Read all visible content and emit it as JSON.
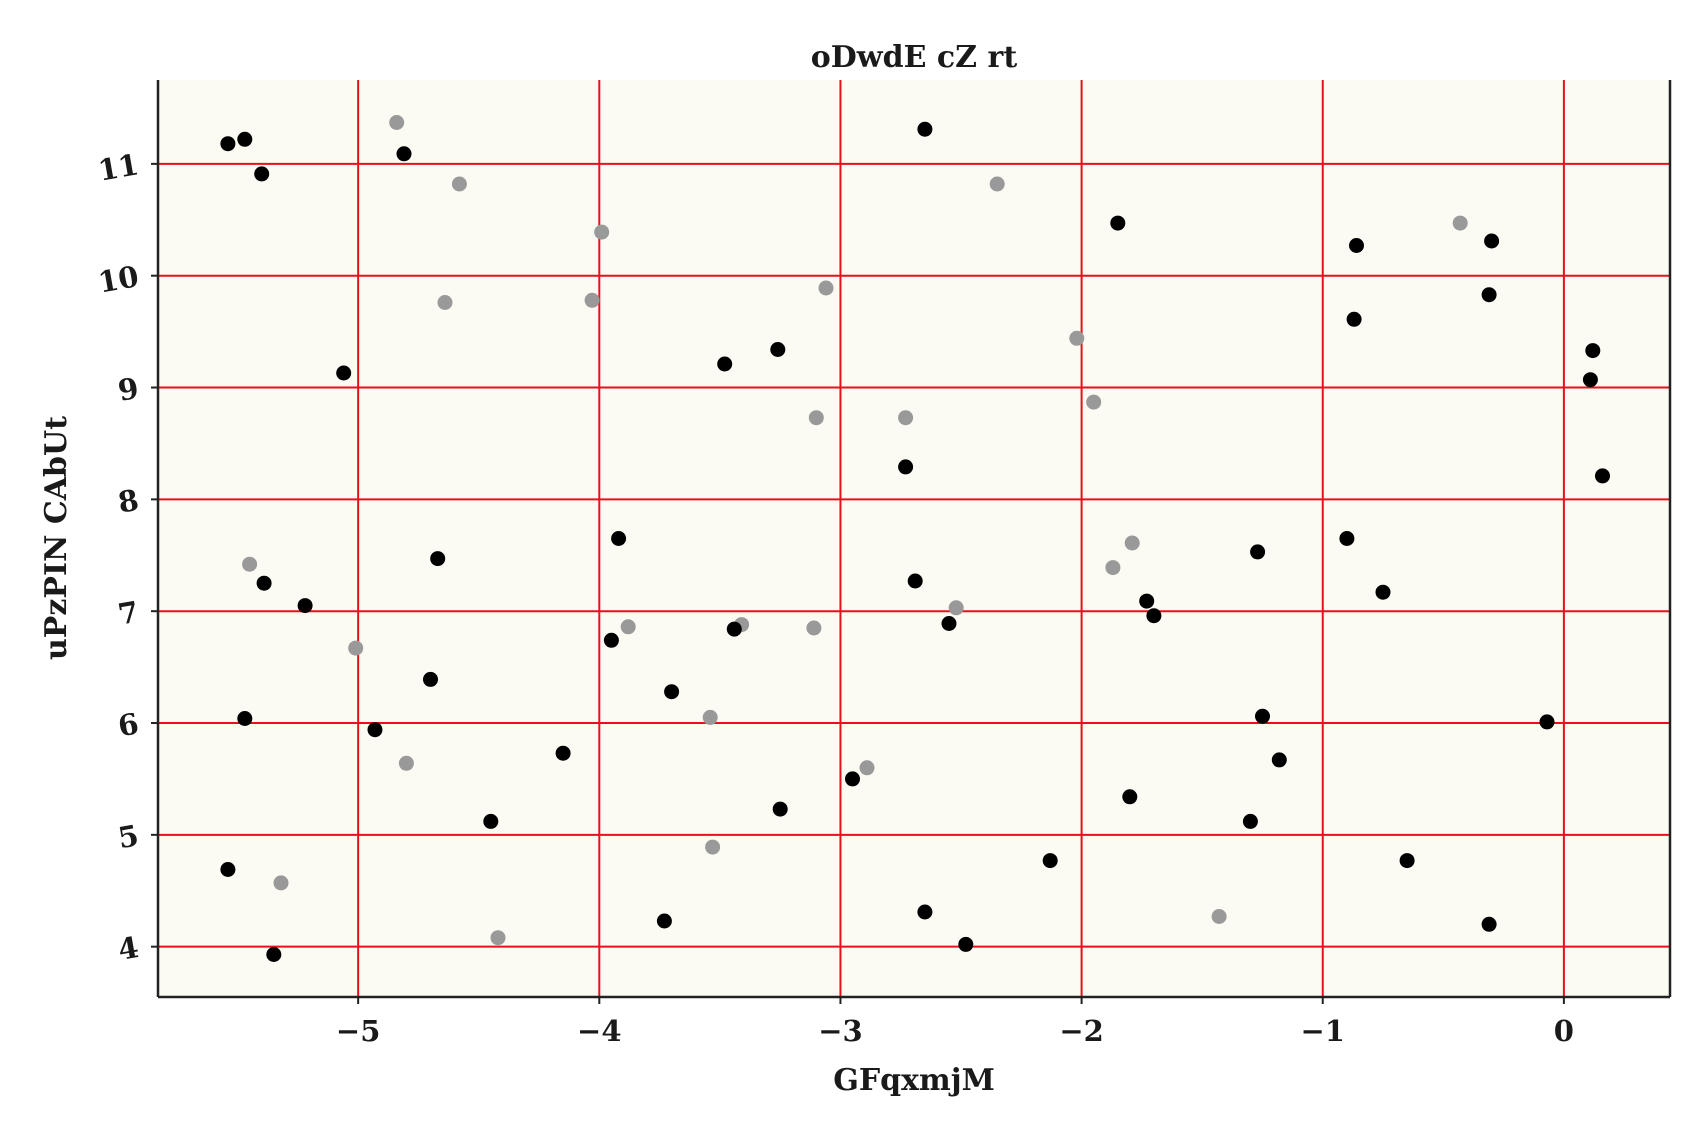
{
  "chart_data": {
    "type": "scatter",
    "title": "oDwdE cZ rt",
    "xlabel": "GFqxmjM",
    "ylabel": "uPzPIN CAbUt",
    "xlim": [
      -5.83,
      0.44
    ],
    "ylim": [
      3.55,
      11.75
    ],
    "xticks": [
      -5,
      -4,
      -3,
      -2,
      -1,
      0
    ],
    "xtick_labels": [
      "−5",
      "−4",
      "−3",
      "−2",
      "−1",
      "0"
    ],
    "yticks": [
      4,
      5,
      6,
      7,
      8,
      9,
      10,
      11
    ],
    "ytick_labels": [
      "4",
      "5",
      "6",
      "7",
      "8",
      "9",
      "10",
      "11"
    ],
    "grid": true,
    "legend": "none",
    "colors": {
      "background": "#fbfaf3",
      "grid": "#e8111b",
      "axes": "#222222",
      "series_black": "#000000",
      "series_gray": "#999999"
    },
    "series": [
      {
        "color": "#000000",
        "points": [
          [
            -5.54,
            11.18
          ],
          [
            -5.47,
            11.22
          ],
          [
            -5.4,
            10.91
          ],
          [
            -4.81,
            11.09
          ],
          [
            -2.65,
            11.31
          ],
          [
            -1.85,
            10.47
          ],
          [
            -0.86,
            10.27
          ],
          [
            -0.3,
            10.31
          ],
          [
            -0.31,
            9.83
          ],
          [
            -0.87,
            9.61
          ],
          [
            -5.06,
            9.13
          ],
          [
            -3.48,
            9.21
          ],
          [
            -3.26,
            9.34
          ],
          [
            0.12,
            9.33
          ],
          [
            0.11,
            9.07
          ],
          [
            -2.73,
            8.29
          ],
          [
            0.16,
            8.21
          ],
          [
            -3.92,
            7.65
          ],
          [
            -4.67,
            7.47
          ],
          [
            -0.9,
            7.65
          ],
          [
            -1.27,
            7.53
          ],
          [
            -5.39,
            7.25
          ],
          [
            -2.69,
            7.27
          ],
          [
            -0.75,
            7.17
          ],
          [
            -5.22,
            7.05
          ],
          [
            -1.73,
            7.09
          ],
          [
            -1.7,
            6.96
          ],
          [
            -2.55,
            6.89
          ],
          [
            -3.44,
            6.84
          ],
          [
            -3.95,
            6.74
          ],
          [
            -4.7,
            6.39
          ],
          [
            -3.7,
            6.28
          ],
          [
            -5.47,
            6.04
          ],
          [
            -1.25,
            6.06
          ],
          [
            -0.07,
            6.01
          ],
          [
            -4.93,
            5.94
          ],
          [
            -4.15,
            5.73
          ],
          [
            -1.18,
            5.67
          ],
          [
            -2.95,
            5.5
          ],
          [
            -3.25,
            5.23
          ],
          [
            -1.8,
            5.34
          ],
          [
            -4.45,
            5.12
          ],
          [
            -1.3,
            5.12
          ],
          [
            -5.54,
            4.69
          ],
          [
            -2.13,
            4.77
          ],
          [
            -0.65,
            4.77
          ],
          [
            -2.65,
            4.31
          ],
          [
            -3.73,
            4.23
          ],
          [
            -0.31,
            4.2
          ],
          [
            -2.48,
            4.02
          ],
          [
            -5.35,
            3.93
          ]
        ]
      },
      {
        "color": "#999999",
        "points": [
          [
            -4.84,
            11.37
          ],
          [
            -4.58,
            10.82
          ],
          [
            -2.35,
            10.82
          ],
          [
            -3.99,
            10.39
          ],
          [
            -0.43,
            10.47
          ],
          [
            -3.06,
            9.89
          ],
          [
            -4.03,
            9.78
          ],
          [
            -4.64,
            9.76
          ],
          [
            -2.02,
            9.44
          ],
          [
            -1.95,
            8.87
          ],
          [
            -3.1,
            8.73
          ],
          [
            -2.73,
            8.73
          ],
          [
            -1.79,
            7.61
          ],
          [
            -5.45,
            7.42
          ],
          [
            -1.87,
            7.39
          ],
          [
            -2.52,
            7.03
          ],
          [
            -3.88,
            6.86
          ],
          [
            -3.41,
            6.88
          ],
          [
            -3.11,
            6.85
          ],
          [
            -5.01,
            6.67
          ],
          [
            -3.54,
            6.05
          ],
          [
            -4.8,
            5.64
          ],
          [
            -2.89,
            5.6
          ],
          [
            -3.53,
            4.89
          ],
          [
            -5.32,
            4.57
          ],
          [
            -1.43,
            4.27
          ],
          [
            -4.42,
            4.08
          ]
        ]
      }
    ]
  }
}
